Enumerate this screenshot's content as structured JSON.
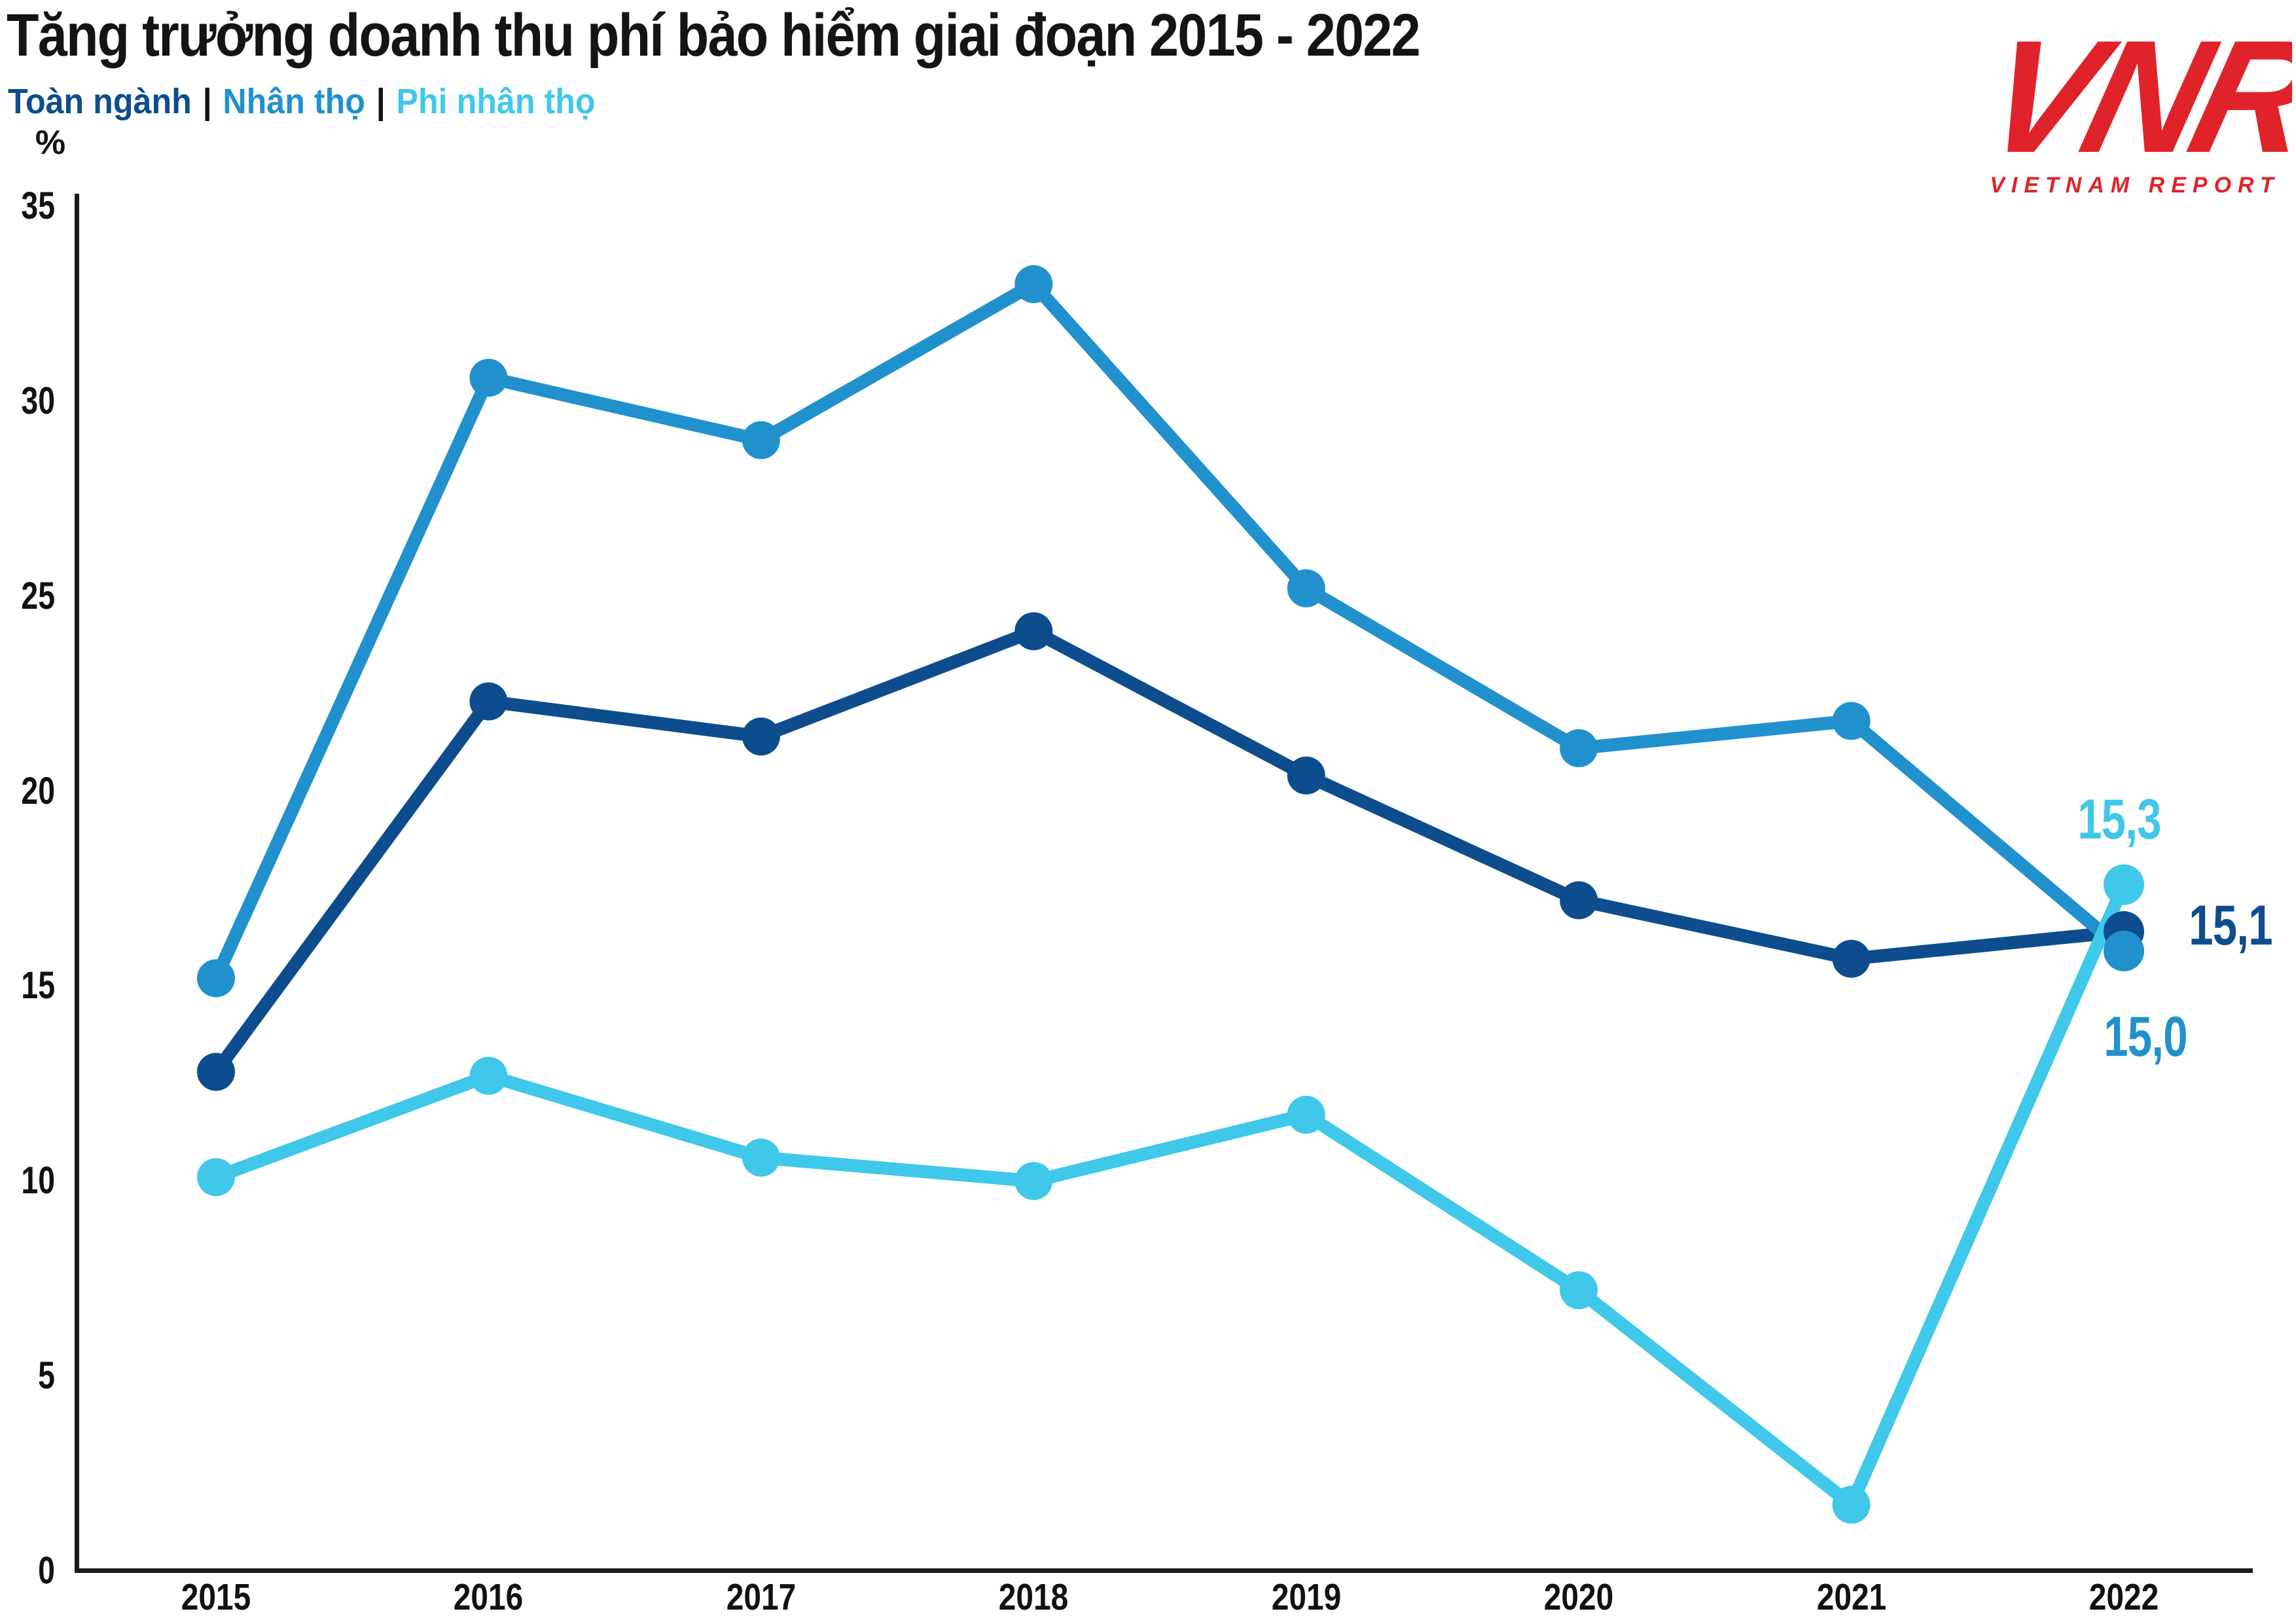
{
  "header": {
    "separator": "|",
    "legend": [
      {
        "id": "toan-nganh",
        "label": "Toàn ngành",
        "color": "#0d4d8d"
      },
      {
        "id": "nhan-tho",
        "label": "Nhân thọ",
        "color": "#2191ce"
      },
      {
        "id": "phi-nhan-tho",
        "label": "Phi nhân thọ",
        "color": "#3fc8e9"
      }
    ]
  },
  "axis": {
    "unit_label": "%",
    "yticks": [
      35,
      30,
      25,
      20,
      15,
      10,
      5,
      0
    ],
    "axis_color": "#1a1a1a"
  },
  "chart_data": {
    "type": "line",
    "title": "Tăng trưởng doanh thu phí bảo hiểm giai đoạn 2015 - 2022",
    "categories": [
      "2015",
      "2016",
      "2017",
      "2018",
      "2019",
      "2020",
      "2021",
      "2022"
    ],
    "series": [
      {
        "id": "toan-nganh",
        "name": "Toàn ngành",
        "color": "#0d4d8d",
        "values": [
          12.8,
          22.3,
          21.4,
          24.1,
          20.4,
          17.2,
          15.7,
          15.1
        ]
      },
      {
        "id": "nhan-tho",
        "name": "Nhân thọ",
        "color": "#2191ce",
        "values": [
          15.2,
          30.6,
          29.0,
          33.0,
          25.2,
          21.1,
          21.8,
          15.0
        ]
      },
      {
        "id": "phi-nhan-tho",
        "name": "Phi nhân thọ",
        "color": "#3fc8e9",
        "values": [
          10.1,
          12.7,
          10.6,
          10.0,
          11.7,
          7.2,
          1.7,
          15.3
        ]
      }
    ],
    "end_labels": [
      {
        "text": "15,3",
        "series": "phi-nhan-tho"
      },
      {
        "text": "15,1",
        "series": "toan-nganh"
      },
      {
        "text": "15,0",
        "series": "nhan-tho"
      }
    ],
    "ylabel": "%",
    "ylim": [
      0,
      35
    ],
    "grid": false,
    "legend_position": "top-left",
    "layout_hints": {
      "end_dot_display_values": {
        "toan-nganh": 16.4,
        "nhan-tho": 15.9,
        "phi-nhan-tho": 17.6
      }
    }
  },
  "logo": {
    "monogram": "VNR",
    "caption": "VIETNAM REPORT",
    "color": "#e0232b"
  }
}
